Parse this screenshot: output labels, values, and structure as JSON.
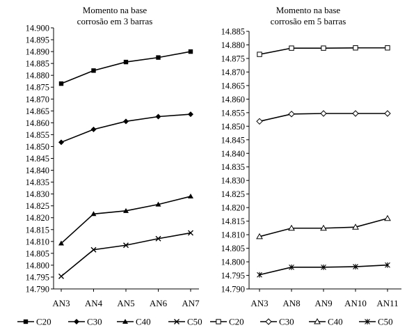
{
  "chart_data": [
    {
      "type": "line",
      "title_lines": [
        "Momento na base",
        "corrosão em 3 barras"
      ],
      "categories": [
        "AN3",
        "AN4",
        "AN5",
        "AN6",
        "AN7"
      ],
      "ylim": [
        14.79,
        14.9
      ],
      "ytick_step": 0.005,
      "ytick_labels": [
        "14.790",
        "14.795",
        "14.800",
        "14.805",
        "14.810",
        "14.815",
        "14.820",
        "14.825",
        "14.830",
        "14.835",
        "14.840",
        "14.845",
        "14.850",
        "14.855",
        "14.860",
        "14.865",
        "14.870",
        "14.875",
        "14.880",
        "14.885",
        "14.890",
        "14.895",
        "14.900"
      ],
      "grid": false,
      "legend_position": "bottom",
      "series": [
        {
          "name": "C20",
          "marker": "square-filled",
          "values": [
            14.8765,
            14.882,
            14.8856,
            14.8875,
            14.89
          ]
        },
        {
          "name": "C30",
          "marker": "diamond-filled",
          "values": [
            14.8518,
            14.8572,
            14.8606,
            14.8626,
            14.8636
          ]
        },
        {
          "name": "C40",
          "marker": "triangle-filled",
          "values": [
            14.8092,
            14.8216,
            14.8229,
            14.8256,
            14.829
          ]
        },
        {
          "name": "C50",
          "marker": "x",
          "values": [
            14.7953,
            14.8065,
            14.8084,
            14.8112,
            14.8136
          ]
        }
      ]
    },
    {
      "type": "line",
      "title_lines": [
        "Momento na base",
        "corrosão em 5 barras"
      ],
      "categories": [
        "AN3",
        "AN8",
        "AN9",
        "AN10",
        "AN11"
      ],
      "ylim": [
        14.79,
        14.885
      ],
      "ytick_step": 0.005,
      "ytick_labels": [
        "14.790",
        "14.795",
        "14.800",
        "14.805",
        "14.810",
        "14.815",
        "14.820",
        "14.825",
        "14.830",
        "14.835",
        "14.840",
        "14.845",
        "14.850",
        "14.855",
        "14.860",
        "14.865",
        "14.870",
        "14.875",
        "14.880",
        "14.885"
      ],
      "grid": false,
      "legend_position": "bottom",
      "series": [
        {
          "name": "C20",
          "marker": "square-open",
          "values": [
            14.8765,
            14.8788,
            14.8788,
            14.8789,
            14.8789
          ]
        },
        {
          "name": "C30",
          "marker": "diamond-open",
          "values": [
            14.8518,
            14.8545,
            14.8547,
            14.8547,
            14.8547
          ]
        },
        {
          "name": "C40",
          "marker": "triangle-open",
          "values": [
            14.8093,
            14.8124,
            14.8124,
            14.8128,
            14.816
          ]
        },
        {
          "name": "C50",
          "marker": "star",
          "values": [
            14.7952,
            14.798,
            14.798,
            14.7982,
            14.7988
          ]
        }
      ]
    }
  ]
}
